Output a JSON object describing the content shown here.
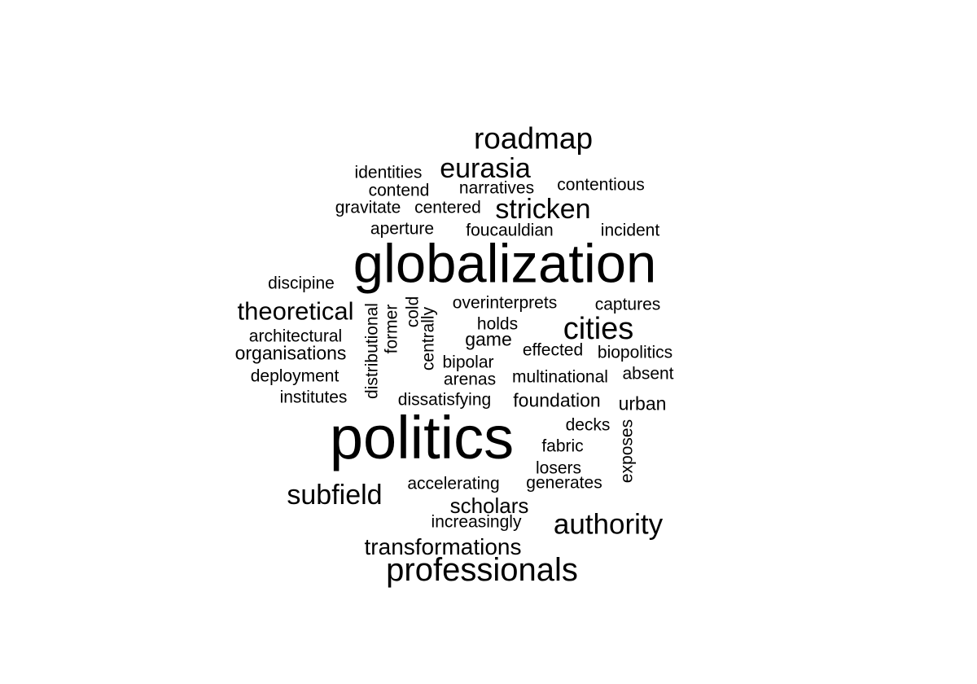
{
  "words": [
    {
      "text": "globalization",
      "weight": 10
    },
    {
      "text": "politics",
      "weight": 10
    },
    {
      "text": "professionals",
      "weight": 6
    },
    {
      "text": "roadmap",
      "weight": 5
    },
    {
      "text": "authority",
      "weight": 5
    },
    {
      "text": "cities",
      "weight": 5
    },
    {
      "text": "eurasia",
      "weight": 4
    },
    {
      "text": "stricken",
      "weight": 4
    },
    {
      "text": "theoretical",
      "weight": 4
    },
    {
      "text": "subfield",
      "weight": 4
    },
    {
      "text": "transformations",
      "weight": 3
    },
    {
      "text": "scholars",
      "weight": 3
    },
    {
      "text": "identities",
      "weight": 2
    },
    {
      "text": "contend",
      "weight": 2
    },
    {
      "text": "narratives",
      "weight": 2
    },
    {
      "text": "contentious",
      "weight": 2
    },
    {
      "text": "gravitate",
      "weight": 2
    },
    {
      "text": "centered",
      "weight": 2
    },
    {
      "text": "aperture",
      "weight": 2
    },
    {
      "text": "foucauldian",
      "weight": 2
    },
    {
      "text": "incident",
      "weight": 2
    },
    {
      "text": "discipine",
      "weight": 2
    },
    {
      "text": "overinterprets",
      "weight": 2
    },
    {
      "text": "captures",
      "weight": 2
    },
    {
      "text": "holds",
      "weight": 2
    },
    {
      "text": "architectural",
      "weight": 2
    },
    {
      "text": "game",
      "weight": 2
    },
    {
      "text": "organisations",
      "weight": 2
    },
    {
      "text": "effected",
      "weight": 2
    },
    {
      "text": "biopolitics",
      "weight": 2
    },
    {
      "text": "bipolar",
      "weight": 2
    },
    {
      "text": "deployment",
      "weight": 2
    },
    {
      "text": "arenas",
      "weight": 2
    },
    {
      "text": "multinational",
      "weight": 2
    },
    {
      "text": "absent",
      "weight": 2
    },
    {
      "text": "institutes",
      "weight": 2
    },
    {
      "text": "dissatisfying",
      "weight": 2
    },
    {
      "text": "foundation",
      "weight": 2
    },
    {
      "text": "urban",
      "weight": 2
    },
    {
      "text": "decks",
      "weight": 2
    },
    {
      "text": "fabric",
      "weight": 2
    },
    {
      "text": "losers",
      "weight": 2
    },
    {
      "text": "accelerating",
      "weight": 2
    },
    {
      "text": "generates",
      "weight": 2
    },
    {
      "text": "increasingly",
      "weight": 2
    },
    {
      "text": "distributional",
      "weight": 2
    },
    {
      "text": "former",
      "weight": 2
    },
    {
      "text": "cold",
      "weight": 2
    },
    {
      "text": "centrally",
      "weight": 2
    },
    {
      "text": "exposes",
      "weight": 2
    }
  ]
}
